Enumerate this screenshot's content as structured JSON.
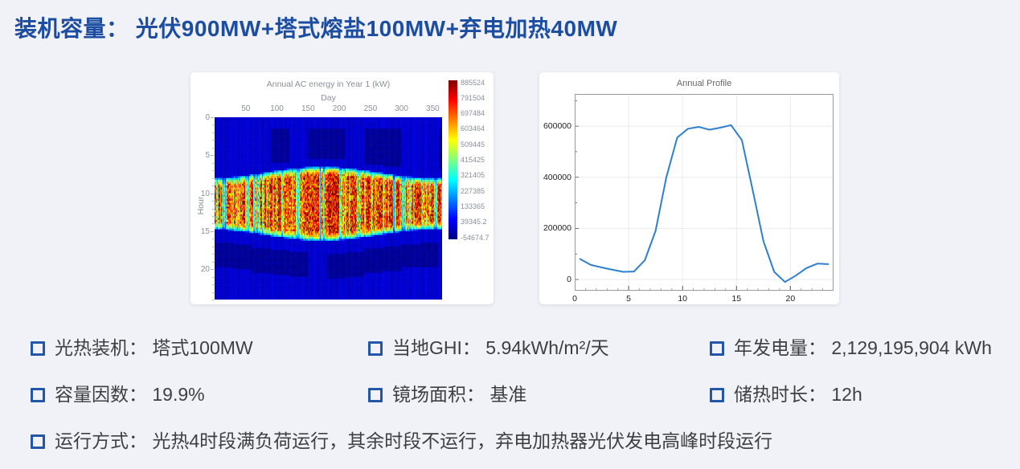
{
  "page": {
    "title": "装机容量： 光伏900MW+塔式熔盐100MW+弃电加热40MW",
    "colors": {
      "title_blue": "#1c4da1",
      "bullet_blue": "#2156a8",
      "background": "#f0f2f7",
      "card_background": "#ffffff",
      "stat_text": "#3d3f42"
    }
  },
  "chart_data": [
    {
      "type": "heatmap",
      "title": "Annual AC energy in Year 1 (kW)",
      "xlabel": "Day",
      "ylabel": "Hour",
      "xlim": [
        0,
        365
      ],
      "ylim": [
        0,
        24
      ],
      "x_ticks": [
        50,
        100,
        150,
        200,
        250,
        300,
        350
      ],
      "y_ticks": [
        0,
        5,
        10,
        15,
        20
      ],
      "colormap": "jet",
      "value_range": [
        -54674.7,
        885524
      ],
      "colorbar_ticks": [
        "885524",
        "791504",
        "697484",
        "603464",
        "509445",
        "415425",
        "321405",
        "227385",
        "133365",
        "39345.2",
        "-54674.7"
      ],
      "pattern_summary": "Deep blue (≈0 kW) at night hours; bright red/dark-red band of PV output between roughly hour 7 and hour 16, wider in mid-year (summer) and narrower at year ends; scattered blue/cyan columns on cloudy days; darker navy blocky patches in early-morning and evening hours.",
      "generation": {
        "seed": 11,
        "days": 365,
        "hour_steps": 96,
        "center": 11.4,
        "halfwidth_base": 4.15,
        "halfwidth_season": 0.75,
        "edge_width": 1.15,
        "peak": 860000,
        "cloud_base": 0.15,
        "night_low": -8000,
        "night_span": 52000,
        "evening_dip": -48000,
        "evening_span": 34000
      }
    },
    {
      "type": "line",
      "title": "Annual Profile",
      "line_color": "#2e7fd0",
      "xlim": [
        0,
        24
      ],
      "ylim": [
        -44000,
        726000
      ],
      "x_ticks": [
        0,
        5,
        10,
        15,
        20
      ],
      "y_ticks": [
        0,
        200000,
        400000,
        600000
      ],
      "grid_x": [
        5,
        10,
        15,
        20
      ],
      "grid_y": [
        0,
        200000,
        400000,
        600000
      ],
      "x": [
        0.5,
        1.5,
        2.5,
        3.5,
        4.5,
        5.5,
        6.5,
        7.5,
        8.5,
        9.5,
        10.5,
        11.5,
        12.5,
        13.5,
        14.5,
        15.5,
        16.5,
        17.5,
        18.5,
        19.5,
        20.5,
        21.5,
        22.5,
        23.5
      ],
      "values": [
        80000,
        57000,
        47000,
        38000,
        30000,
        31000,
        75000,
        190000,
        400000,
        555000,
        590000,
        597000,
        586000,
        594000,
        604000,
        545000,
        350000,
        150000,
        30000,
        -10000,
        15000,
        45000,
        62000,
        60000
      ]
    }
  ],
  "stats": [
    {
      "id": "csp-capacity",
      "text": "光热装机： 塔式100MW"
    },
    {
      "id": "ghi",
      "text": "当地GHI： 5.94kWh/m²/天"
    },
    {
      "id": "annual-energy",
      "text": "年发电量： 2,129,195,904 kWh"
    },
    {
      "id": "capacity-factor",
      "text": "容量因数： 19.9%"
    },
    {
      "id": "field-area",
      "text": "镜场面积： 基准"
    },
    {
      "id": "storage-hours",
      "text": "储热时长： 12h"
    },
    {
      "id": "operation-mode",
      "text": "运行方式： 光热4时段满负荷运行，其余时段不运行，弃电加热器光伏发电高峰时段运行"
    }
  ]
}
